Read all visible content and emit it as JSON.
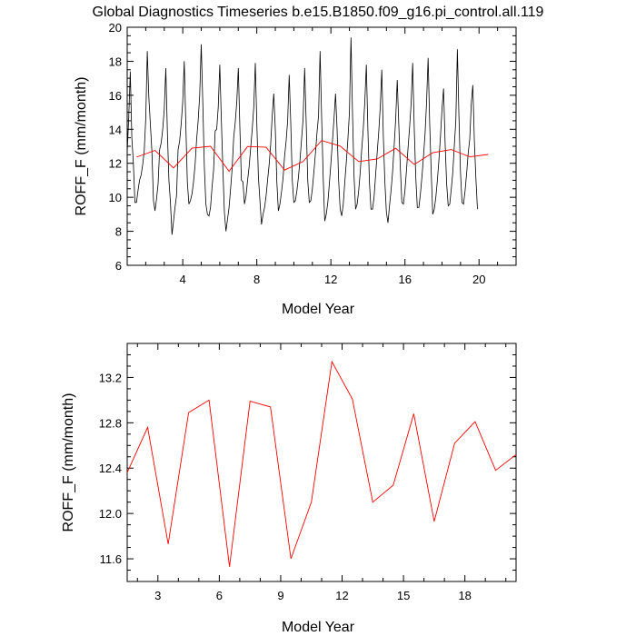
{
  "title": "Global Diagnostics Timeseries b.e15.B1850.f09_g16.pi_control.all.119",
  "colors": {
    "monthly": "#000000",
    "annual": "#ff0000",
    "frame": "#000000"
  },
  "chart_data": [
    {
      "type": "line",
      "xlabel": "Model Year",
      "ylabel": "ROFF_F (mm/month)",
      "xlim": [
        1,
        22
      ],
      "ylim": [
        6,
        20
      ],
      "xticks": [
        4,
        8,
        12,
        16,
        20
      ],
      "yticks": [
        6,
        8,
        10,
        12,
        14,
        16,
        18,
        20
      ],
      "grid": false,
      "series": [
        {
          "role": "monthly",
          "x_start": 1,
          "x_step": 0.08333,
          "values": [
            12.6,
            14.7,
            17.4,
            13.5,
            12.0,
            9.7,
            9.7,
            10.4,
            11.0,
            11.3,
            11.9,
            12.7,
            14.6,
            18.6,
            15.9,
            14.3,
            12.7,
            9.8,
            9.2,
            9.9,
            10.8,
            12.8,
            13.2,
            14.0,
            15.2,
            17.6,
            13.9,
            11.0,
            9.7,
            7.8,
            8.6,
            9.4,
            10.1,
            12.8,
            13.3,
            14.3,
            15.6,
            18.0,
            14.3,
            10.9,
            9.6,
            9.8,
            10.2,
            10.9,
            11.9,
            13.4,
            14.5,
            16.0,
            19.0,
            15.6,
            11.8,
            9.6,
            9.0,
            8.9,
            9.4,
            10.6,
            11.6,
            13.9,
            14.0,
            15.3,
            17.8,
            14.6,
            11.7,
            9.1,
            8.0,
            8.7,
            9.4,
            10.5,
            11.7,
            13.5,
            14.4,
            15.6,
            17.6,
            14.1,
            11.0,
            10.9,
            9.6,
            10.1,
            11.0,
            11.8,
            12.9,
            14.0,
            15.3,
            17.9,
            14.3,
            11.2,
            9.8,
            8.4,
            9.0,
            9.4,
            10.1,
            11.0,
            11.9,
            13.1,
            14.8,
            16.1,
            14.0,
            10.9,
            9.2,
            9.6,
            10.3,
            11.1,
            12.4,
            13.3,
            14.5,
            17.2,
            14.4,
            11.0,
            9.7,
            9.8,
            10.4,
            11.2,
            12.2,
            13.4,
            14.6,
            17.6,
            14.4,
            11.0,
            9.7,
            9.8,
            10.5,
            11.5,
            12.6,
            13.8,
            14.8,
            18.6,
            14.7,
            11.2,
            8.6,
            9.0,
            9.7,
            10.8,
            12.0,
            13.3,
            14.6,
            16.1,
            14.0,
            11.0,
            9.3,
            8.9,
            9.6,
            10.9,
            12.1,
            13.4,
            15.0,
            19.4,
            14.9,
            11.2,
            9.3,
            9.6,
            10.4,
            11.5,
            12.8,
            14.0,
            15.6,
            17.8,
            14.0,
            10.9,
            9.3,
            9.3,
            10.0,
            11.3,
            12.6,
            13.8,
            15.3,
            17.5,
            13.6,
            10.9,
            9.1,
            8.5,
            9.5,
            10.4,
            11.5,
            13.0,
            14.6,
            16.9,
            14.3,
            11.8,
            9.7,
            9.6,
            10.4,
            11.6,
            12.9,
            14.1,
            15.5,
            17.9,
            14.1,
            11.2,
            9.4,
            9.4,
            10.2,
            11.2,
            12.4,
            13.7,
            15.6,
            18.2,
            14.4,
            11.5,
            9.0,
            9.3,
            10.0,
            11.0,
            12.2,
            13.6,
            15.2,
            16.4,
            13.2,
            10.8,
            9.5,
            9.6,
            10.5,
            11.5,
            13.0,
            14.5,
            18.7,
            14.8,
            11.5,
            9.7,
            9.6,
            10.4,
            11.4,
            12.6,
            13.4,
            15.5,
            16.6,
            13.3,
            11.1,
            9.3
          ]
        },
        {
          "role": "annual",
          "x": [
            1.5,
            2.5,
            3.5,
            4.5,
            5.5,
            6.5,
            7.5,
            8.5,
            9.5,
            10.5,
            11.5,
            12.5,
            13.5,
            14.5,
            15.5,
            16.5,
            17.5,
            18.5,
            19.5,
            20.5
          ],
          "values": [
            12.36,
            12.76,
            11.73,
            12.89,
            13.0,
            11.53,
            12.99,
            12.94,
            11.6,
            12.1,
            13.34,
            13.01,
            12.1,
            12.25,
            12.88,
            11.93,
            12.62,
            12.81,
            12.38,
            12.52
          ]
        }
      ]
    },
    {
      "type": "line",
      "xlabel": "Model Year",
      "ylabel": "ROFF_F (mm/month)",
      "xlim": [
        1.5,
        20.5
      ],
      "ylim": [
        11.4,
        13.5
      ],
      "xticks": [
        3,
        6,
        9,
        12,
        15,
        18
      ],
      "yticks": [
        11.6,
        12.0,
        12.4,
        12.8,
        13.2
      ],
      "grid": false,
      "series": [
        {
          "role": "annual",
          "x": [
            1.5,
            2.5,
            3.5,
            4.5,
            5.5,
            6.5,
            7.5,
            8.5,
            9.5,
            10.5,
            11.5,
            12.5,
            13.5,
            14.5,
            15.5,
            16.5,
            17.5,
            18.5,
            19.5,
            20.5
          ],
          "values": [
            12.36,
            12.76,
            11.73,
            12.89,
            13.0,
            11.53,
            12.99,
            12.94,
            11.6,
            12.1,
            13.34,
            13.01,
            12.1,
            12.25,
            12.88,
            11.93,
            12.62,
            12.81,
            12.38,
            12.52
          ]
        }
      ]
    }
  ]
}
